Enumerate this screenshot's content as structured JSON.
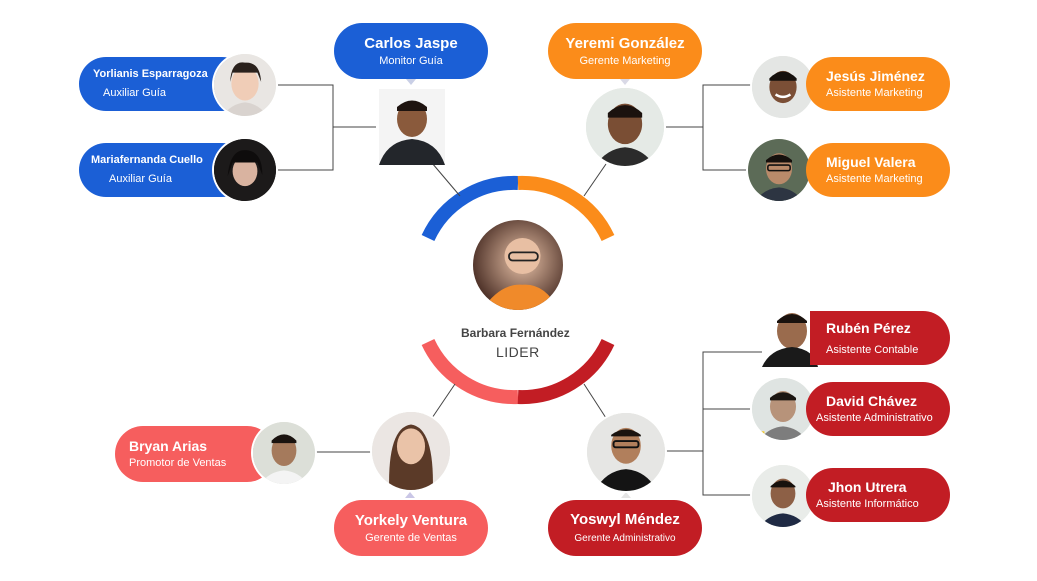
{
  "colors": {
    "blue": "#1b5fd6",
    "orange": "#fb8c1a",
    "red": "#c21d24",
    "coral": "#f65e5e",
    "line": "#444444"
  },
  "leader": {
    "name": "Barbara Fernández",
    "role": "LIDER"
  },
  "people": [
    {
      "id": "carlos",
      "name": "Carlos Jaspe",
      "role": "Monitor Guía"
    },
    {
      "id": "yeremi",
      "name": "Yeremi González",
      "role": "Gerente Marketing"
    },
    {
      "id": "yorlianis",
      "name": "Yorlianis Esparragoza",
      "role": "Auxiliar Guía"
    },
    {
      "id": "mariafernanda",
      "name": "Mariafernanda Cuello",
      "role": "Auxiliar Guía"
    },
    {
      "id": "jesus",
      "name": "Jesús Jiménez",
      "role": "Asistente Marketing"
    },
    {
      "id": "miguel",
      "name": "Miguel Valera",
      "role": "Asistente Marketing"
    },
    {
      "id": "ruben",
      "name": "Rubén Pérez",
      "role": "Asistente Contable"
    },
    {
      "id": "david",
      "name": "David Chávez",
      "role": "Asistente Administrativo"
    },
    {
      "id": "jhon",
      "name": "Jhon Utrera",
      "role": "Asistente Informático"
    },
    {
      "id": "bryan",
      "name": "Bryan Arias",
      "role": "Promotor de Ventas"
    },
    {
      "id": "yorkely",
      "name": "Yorkely Ventura",
      "role": "Gerente de Ventas"
    },
    {
      "id": "yoswyl",
      "name": "Yoswyl Méndez",
      "role": "Gerente Administrativo"
    }
  ]
}
